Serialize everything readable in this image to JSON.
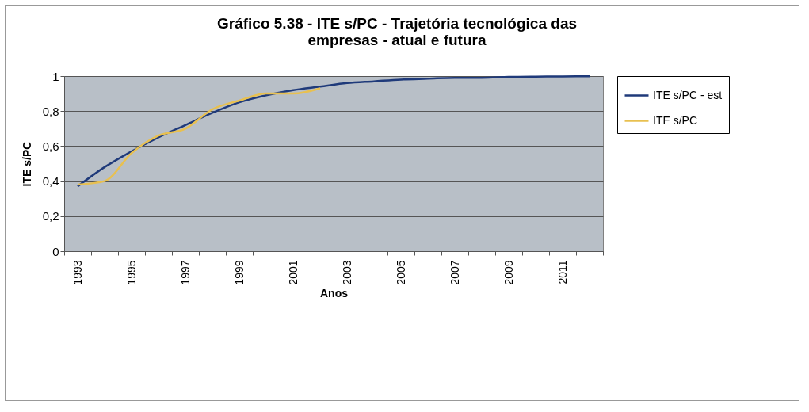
{
  "chart_data": {
    "type": "line",
    "title": "Gráfico 5.38 - ITE s/PC - Trajetória tecnológica das empresas - atual e futura",
    "xlabel": "Anos",
    "ylabel": "ITE s/PC",
    "categories": [
      "1993",
      null,
      "1995",
      null,
      "1997",
      null,
      "1999",
      null,
      "2001",
      null,
      "2003",
      null,
      "2005",
      null,
      "2007",
      null,
      "2009",
      null,
      "2011",
      null
    ],
    "series": [
      {
        "name": "ITE s/PC - est",
        "color": "#1f3a7a",
        "values": [
          0.37,
          0.48,
          0.57,
          0.65,
          0.72,
          0.79,
          0.85,
          0.89,
          0.92,
          0.94,
          0.96,
          0.97,
          0.98,
          0.985,
          0.99,
          0.99,
          0.995,
          0.997,
          0.998,
          0.999
        ]
      },
      {
        "name": "ITE s/PC",
        "color": "#e8c050",
        "values": [
          0.38,
          0.4,
          0.56,
          0.66,
          0.7,
          0.81,
          0.86,
          0.9,
          0.9,
          0.93,
          null,
          null,
          null,
          null,
          null,
          null,
          null,
          null,
          null,
          null
        ]
      }
    ],
    "ylim": [
      0,
      1
    ],
    "yticks": [
      {
        "value": 0,
        "label": "0"
      },
      {
        "value": 0.2,
        "label": "0,2"
      },
      {
        "value": 0.4,
        "label": "0,4"
      },
      {
        "value": 0.6,
        "label": "0,6"
      },
      {
        "value": 0.8,
        "label": "0,8"
      },
      {
        "value": 1,
        "label": "1"
      }
    ],
    "grid": "y",
    "legend": "right",
    "marker": "none",
    "line_style": "solid"
  }
}
